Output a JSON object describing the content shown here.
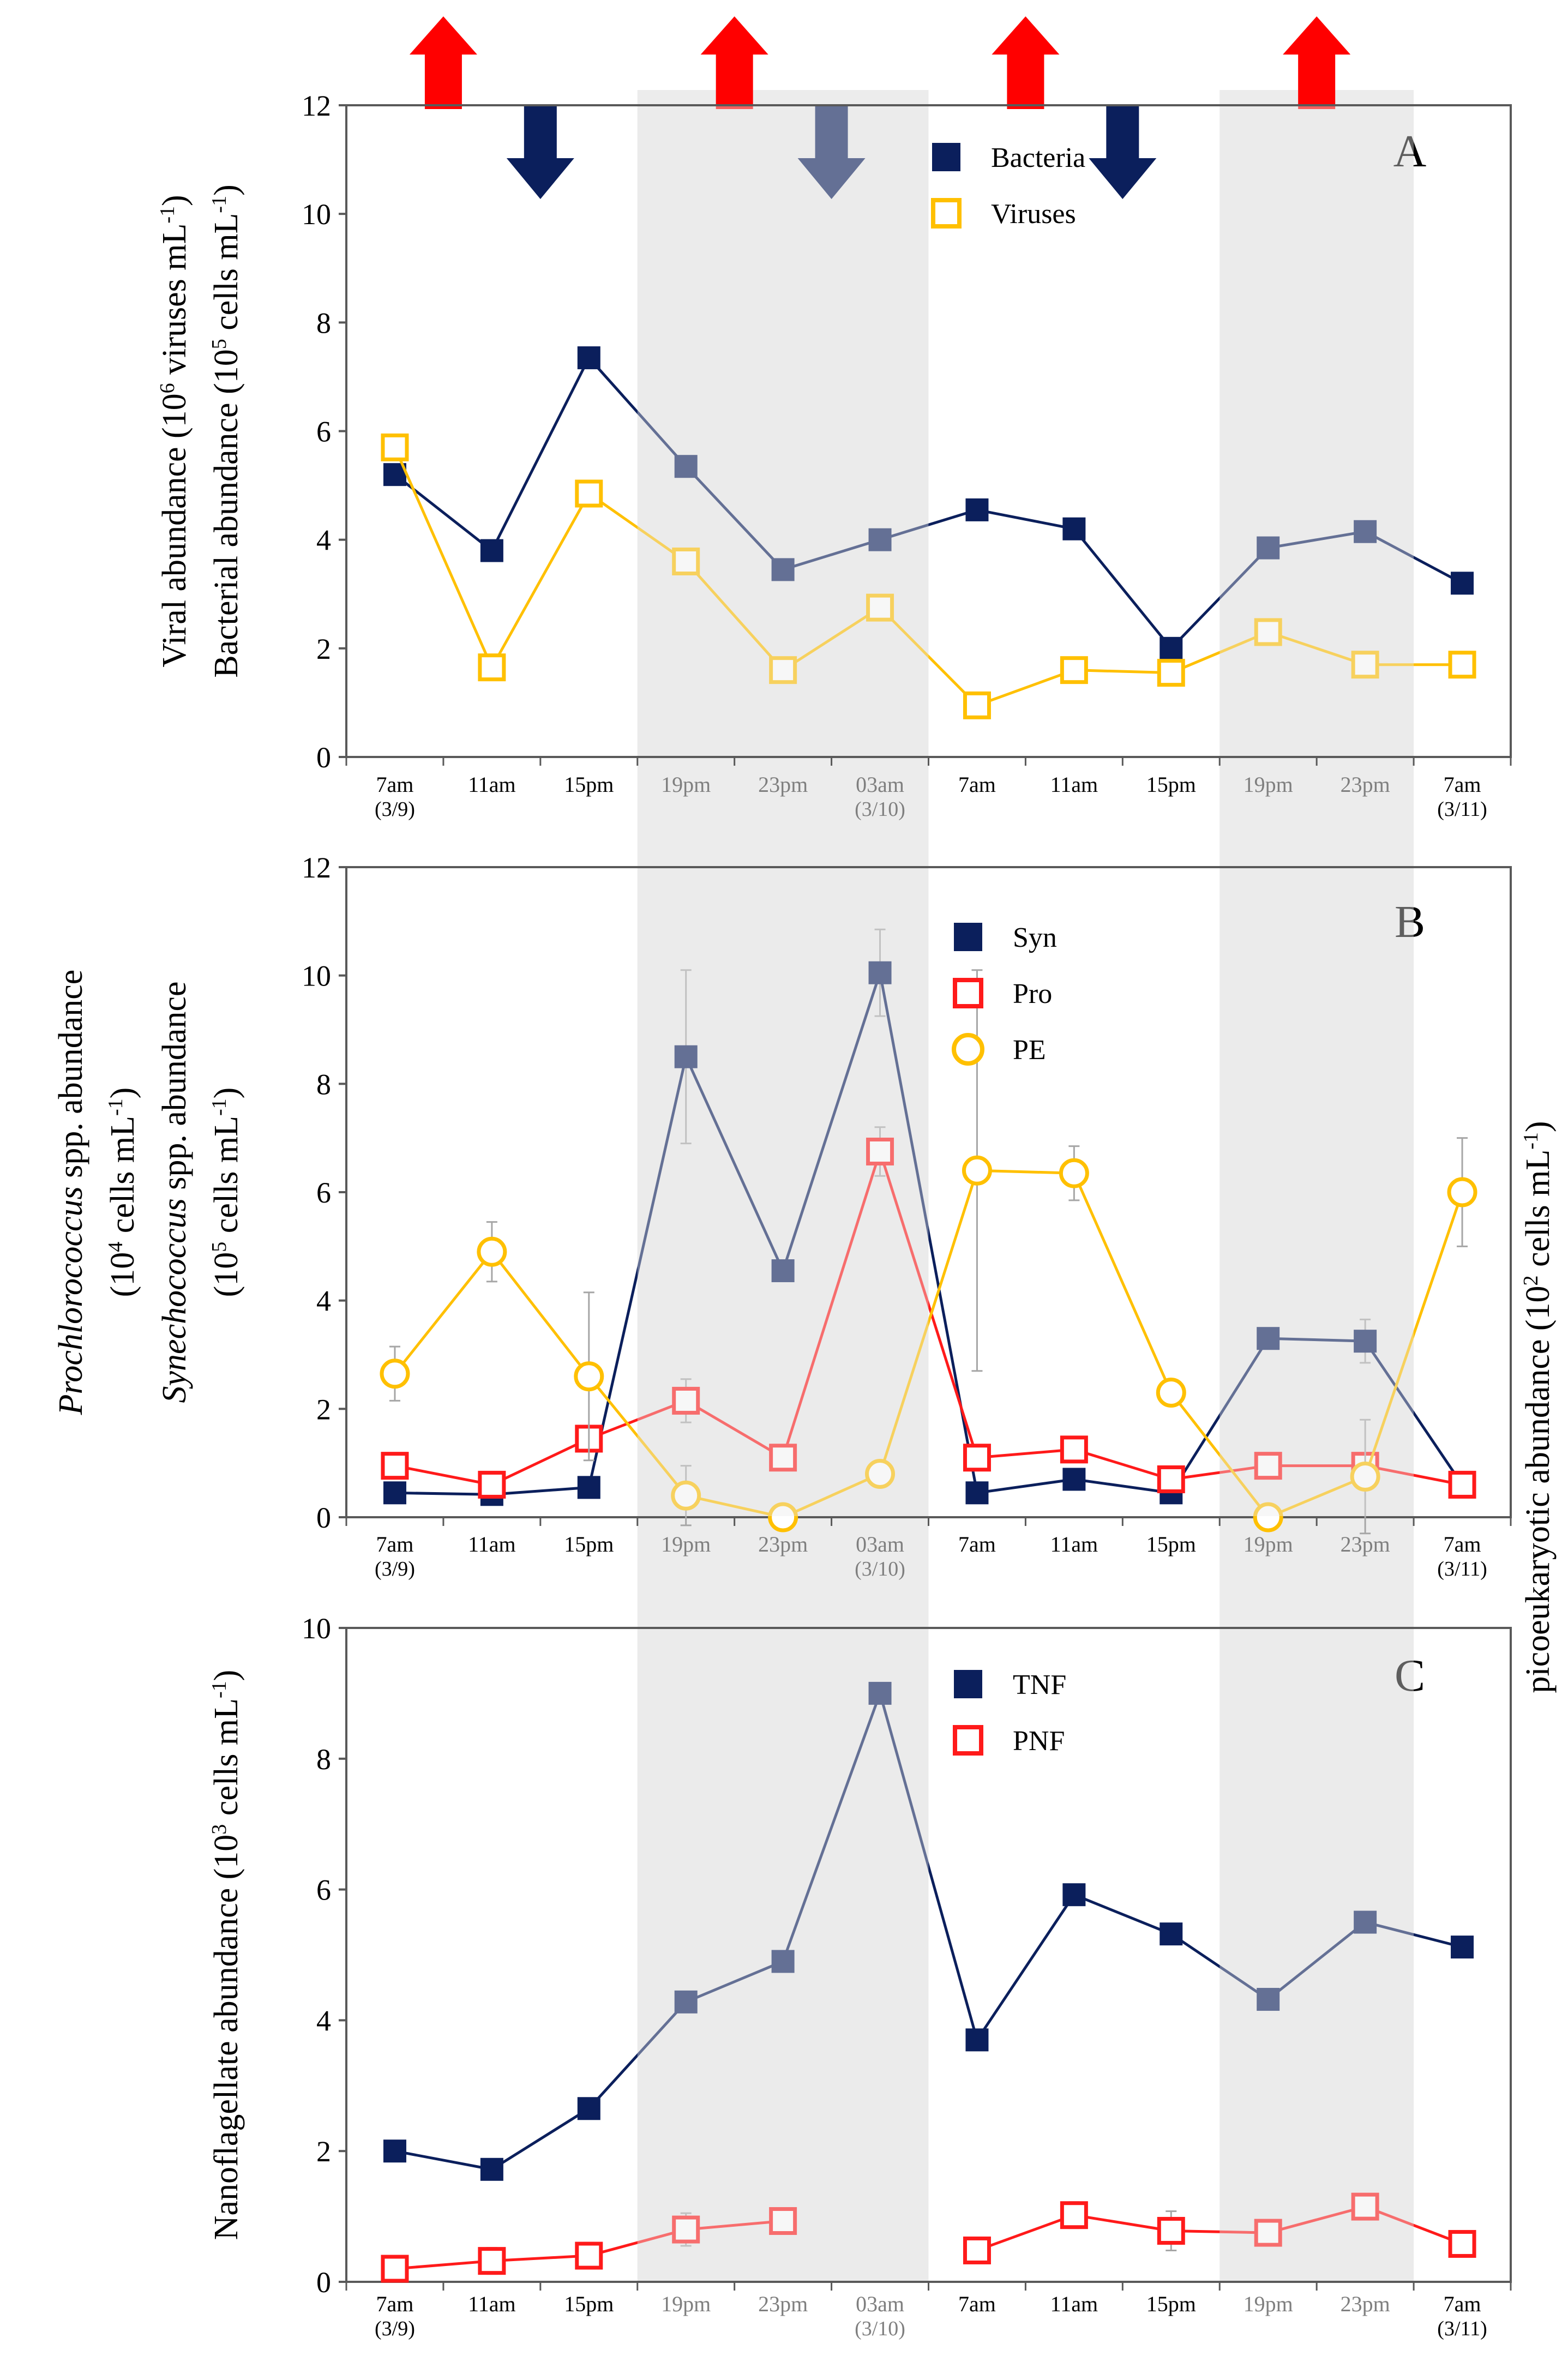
{
  "x_categories": [
    {
      "time": "7am",
      "date": "(3/9)"
    },
    {
      "time": "11am",
      "date": ""
    },
    {
      "time": "15pm",
      "date": ""
    },
    {
      "time": "19pm",
      "date": ""
    },
    {
      "time": "23pm",
      "date": ""
    },
    {
      "time": "03am",
      "date": "(3/10)"
    },
    {
      "time": "7am",
      "date": ""
    },
    {
      "time": "11am",
      "date": ""
    },
    {
      "time": "15pm",
      "date": ""
    },
    {
      "time": "19pm",
      "date": ""
    },
    {
      "time": "23pm",
      "date": ""
    },
    {
      "time": "7am",
      "date": "(3/11)"
    }
  ],
  "night_periods": [
    [
      3,
      5
    ],
    [
      9,
      10
    ]
  ],
  "colors": {
    "navy": "#0b1f5c",
    "red": "#ff1a1a",
    "yellow": "#ffc000",
    "arrow_up": "#ff0000",
    "arrow_down": "#0b1f5c",
    "shade": "#ececec",
    "error_bar": "#a6a6a6"
  },
  "arrows": {
    "up_after_category": [
      1,
      4,
      7,
      10
    ],
    "down_after_category": [
      2,
      5,
      8
    ]
  },
  "chart_data": [
    {
      "panel": "A",
      "type": "line",
      "ylim": [
        0,
        12
      ],
      "yticks": [
        0,
        2,
        4,
        6,
        8,
        10,
        12
      ],
      "ylabel_lines": [
        "Viral abundance (10^6 viruses mL^-1)",
        "Bacterial abundance (10^5 cells mL^-1)"
      ],
      "ylabel_parts": [
        [
          [
            "Viral abundance (10",
            ""
          ],
          [
            "6",
            "sup"
          ],
          [
            " viruses mL",
            ""
          ],
          [
            "-1",
            "sup"
          ],
          [
            ")",
            ""
          ]
        ],
        [
          [
            "Bacterial abundance (10",
            ""
          ],
          [
            "5",
            "sup"
          ],
          [
            " cells mL",
            ""
          ],
          [
            "-1",
            "sup"
          ],
          [
            ")",
            ""
          ]
        ]
      ],
      "right_ylabel_parts": [],
      "series": [
        {
          "name": "Bacteria",
          "marker": "filled-square",
          "color": "#0b1f5c",
          "values": [
            5.2,
            3.8,
            7.35,
            5.35,
            3.45,
            4.0,
            4.55,
            4.2,
            2.0,
            3.85,
            4.15,
            3.2
          ],
          "errors": [
            0.1,
            0.1,
            0.1,
            0.1,
            0.1,
            0.1,
            0.1,
            0.1,
            0.1,
            0.1,
            0.1,
            0.1
          ]
        },
        {
          "name": "Viruses",
          "marker": "open-square",
          "color": "#ffc000",
          "values": [
            5.7,
            1.65,
            4.85,
            3.6,
            1.6,
            2.75,
            0.95,
            1.6,
            1.55,
            2.3,
            1.7,
            1.7
          ],
          "errors": [
            0.2,
            0.15,
            0.2,
            0.2,
            0.15,
            0.2,
            0.1,
            0.15,
            0.1,
            0.2,
            0.2,
            0.15
          ]
        }
      ]
    },
    {
      "panel": "B",
      "type": "line",
      "ylim": [
        0,
        12
      ],
      "yticks": [
        0,
        2,
        4,
        6,
        8,
        10,
        12
      ],
      "ylabel_lines": [
        "Prochlorococcus spp. abundance",
        "(10^4 cells mL^-1)",
        "Synechococcus spp. abundance",
        "(10^5 cells mL^-1)"
      ],
      "ylabel_parts": [
        [
          [
            "Prochlorococcus",
            "i"
          ],
          [
            " spp. abundance",
            ""
          ]
        ],
        [
          [
            "(10",
            ""
          ],
          [
            "4",
            "sup"
          ],
          [
            " cells mL",
            ""
          ],
          [
            "-1",
            "sup"
          ],
          [
            ")",
            ""
          ]
        ],
        [
          [
            "Synechococcus",
            "i"
          ],
          [
            " spp. abundance",
            ""
          ]
        ],
        [
          [
            "(10",
            ""
          ],
          [
            "5",
            "sup"
          ],
          [
            " cells mL",
            ""
          ],
          [
            "-1",
            "sup"
          ],
          [
            ")",
            ""
          ]
        ]
      ],
      "right_ylabel": "picoeukaryotic abundance (10^2 cells mL^-1)",
      "right_ylabel_parts": [
        [
          "picoeukaryotic abundance (10",
          ""
        ],
        [
          "2",
          "sup"
        ],
        [
          " cells mL",
          ""
        ],
        [
          "-1",
          "sup"
        ],
        [
          ")",
          ""
        ]
      ],
      "series": [
        {
          "name": "Syn",
          "marker": "filled-square",
          "color": "#0b1f5c",
          "values": [
            0.45,
            0.42,
            0.55,
            8.5,
            4.55,
            10.05,
            0.45,
            0.7,
            0.45,
            3.3,
            3.25,
            0.6
          ],
          "errors": [
            0.05,
            0.05,
            0.05,
            1.6,
            0.1,
            0.8,
            0.05,
            0.1,
            0.05,
            0.1,
            0.4,
            0.05
          ]
        },
        {
          "name": "Pro",
          "marker": "open-square",
          "color": "#ff1a1a",
          "values": [
            0.95,
            0.6,
            1.45,
            2.15,
            1.1,
            6.75,
            1.1,
            1.25,
            0.7,
            0.95,
            0.95,
            0.6
          ],
          "errors": [
            0.05,
            0.05,
            0.1,
            0.4,
            0.1,
            0.45,
            0.1,
            0.1,
            0.05,
            0.2,
            0.1,
            0.05
          ]
        },
        {
          "name": "PE",
          "marker": "open-circle",
          "color": "#ffc000",
          "values": [
            2.65,
            4.9,
            2.6,
            0.4,
            0.0,
            0.8,
            6.4,
            6.35,
            2.3,
            0.0,
            0.75,
            6.0
          ],
          "errors": [
            0.5,
            0.55,
            1.55,
            0.55,
            0.0,
            0.0,
            3.7,
            0.5,
            0.0,
            0.0,
            1.05,
            1.0
          ]
        }
      ]
    },
    {
      "panel": "C",
      "type": "line",
      "ylim": [
        0,
        10
      ],
      "yticks": [
        0,
        2,
        4,
        6,
        8,
        10
      ],
      "ylabel_lines": [
        "Nanoflagellate abundance (10^3 cells mL^-1)"
      ],
      "ylabel_parts": [
        [
          [
            "Nanoflagellate abundance (10",
            ""
          ],
          [
            "3",
            "sup"
          ],
          [
            " cells mL",
            ""
          ],
          [
            "-1",
            "sup"
          ],
          [
            ")",
            ""
          ]
        ]
      ],
      "right_ylabel_parts": [],
      "series": [
        {
          "name": "TNF",
          "marker": "filled-square",
          "color": "#0b1f5c",
          "values": [
            2.0,
            1.72,
            2.65,
            4.28,
            4.9,
            9.0,
            3.7,
            5.92,
            5.32,
            4.32,
            5.5,
            5.12
          ],
          "errors": [
            0.05,
            0.05,
            0.05,
            0.05,
            0.05,
            0.05,
            0.05,
            0.05,
            0.05,
            0.05,
            0.05,
            0.05
          ]
        },
        {
          "name": "PNF",
          "marker": "open-square",
          "color": "#ff1a1a",
          "values": [
            0.2,
            0.32,
            0.4,
            0.8,
            0.93,
            null,
            0.48,
            1.02,
            0.78,
            0.75,
            1.15,
            0.58
          ],
          "errors": [
            0.05,
            0.2,
            0.2,
            0.25,
            0.15,
            null,
            0.15,
            0.2,
            0.3,
            0.1,
            0.15,
            0.1
          ]
        }
      ]
    }
  ]
}
